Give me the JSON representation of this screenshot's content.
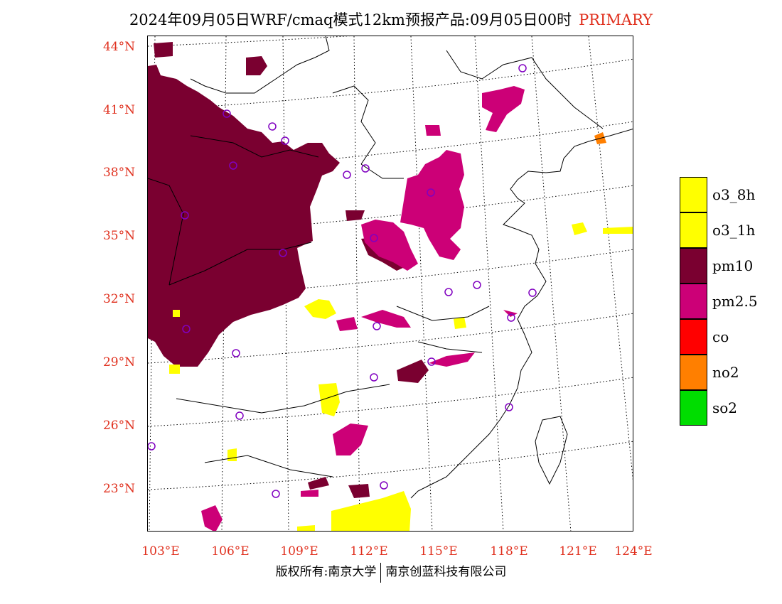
{
  "title": {
    "main": "2024年09月05日WRF/cmaq模式12km预报产品:09月05日00时",
    "tag": "PRIMARY"
  },
  "map": {
    "lat_labels": [
      "44°N",
      "41°N",
      "38°N",
      "35°N",
      "32°N",
      "29°N",
      "26°N",
      "23°N"
    ],
    "lon_labels": [
      "103°E",
      "106°E",
      "109°E",
      "112°E",
      "115°E",
      "118°E",
      "121°E",
      "124°E"
    ],
    "lon_range": [
      103,
      124
    ],
    "lat_range": [
      21,
      44.5
    ]
  },
  "legend": [
    {
      "label": "o3_8h",
      "color": "#ffff00"
    },
    {
      "label": "o3_1h",
      "color": "#ffff00"
    },
    {
      "label": "pm10",
      "color": "#7a0030"
    },
    {
      "label": "pm2.5",
      "color": "#cc0077"
    },
    {
      "label": "co",
      "color": "#ff0000"
    },
    {
      "label": "no2",
      "color": "#ff7f00"
    },
    {
      "label": "so2",
      "color": "#00dd00"
    }
  ],
  "colors": {
    "pm10": "#7a0030",
    "pm25": "#cc0077",
    "o3": "#ffff00",
    "no2": "#ff7f00",
    "station": "#8000c0",
    "label_red": "#e0301e"
  },
  "footer": {
    "left": "版权所有:南京大学",
    "right": "南京创蓝科技有限公司"
  }
}
